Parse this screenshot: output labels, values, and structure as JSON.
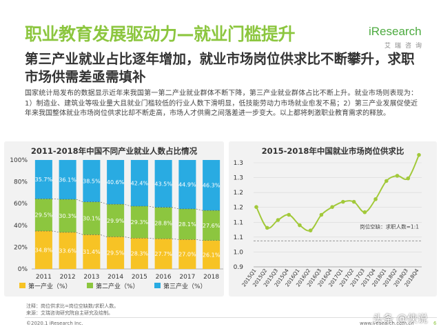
{
  "header": {
    "title": "职业教育发展驱动力—就业门槛提升",
    "subtitle": "第三产业就业占比逐年增加，就业市场岗位供求比不断攀升，求职市场供需差亟需填补",
    "body": "国家统计局发布的数据显示近年来我国第一第二产业就业群体不断下降，第三产业就业群体占比不断上升。就业市场则表现为：1）制造业、建筑业等吸业量大且就业门槛较低的行业人数下滑明显，低技能劳动力市场就业愈发不易；2）第三产业发展促使近年来我国整体就业市场岗位供求比却不断走高，市场人才供需之间落差进一步变大。以上都将刺激职业教育需求的释放。"
  },
  "logo": {
    "main": "iResearch",
    "sub": "艾瑞咨询"
  },
  "colors": {
    "primary": "#f7c325",
    "secondary": "#8cc63f",
    "tertiary": "#29abe2",
    "line": "#a2c93a",
    "title": "#8cc63f"
  },
  "chart_data": [
    {
      "type": "bar",
      "stacked": true,
      "title": "2011-2018年中国不同产业就业人数占比情况",
      "categories": [
        "2011",
        "2012",
        "2013",
        "2014",
        "2015",
        "2016",
        "2017",
        "2018"
      ],
      "series": [
        {
          "name": "第一产业（%）",
          "values": [
            34.8,
            33.6,
            31.4,
            29.5,
            28.3,
            27.7,
            27.0,
            26.1
          ],
          "labels": [
            "34.8%",
            "33.6%",
            "31.4%",
            "29.5%",
            "28.3%",
            "27.7%",
            "27.0%",
            "26.1%"
          ]
        },
        {
          "name": "第二产业（%）",
          "values": [
            29.5,
            30.3,
            30.1,
            29.9,
            29.3,
            28.8,
            28.1,
            27.6
          ],
          "labels": [
            "29.5%",
            "30.3%",
            "30.1%",
            "29.9%",
            "29.3%",
            "28.8%",
            "28.1%",
            "27.6%"
          ]
        },
        {
          "name": "第三产业（%）",
          "values": [
            35.7,
            36.1,
            38.5,
            40.6,
            42.4,
            43.5,
            44.9,
            46.3
          ],
          "labels": [
            "35.7%",
            "36.1%",
            "38.5%",
            "40.6%",
            "42.4%",
            "43.5%",
            "44.9%",
            "46.3%"
          ]
        }
      ],
      "yticks": [
        "0%",
        "20%",
        "40%",
        "60%",
        "80%",
        "100%"
      ],
      "ylim": [
        0,
        100
      ],
      "legend": "bottom"
    },
    {
      "type": "line",
      "title": "2015-2018年中国就业市场岗位供求比",
      "x": [
        "2015Q1",
        "2015Q2",
        "2015Q3",
        "2015Q4",
        "2016Q1",
        "2016Q2",
        "2016Q3",
        "2016Q4",
        "2017Q1",
        "2017Q2",
        "2017Q3",
        "2017Q4",
        "2018Q1",
        "2018Q2",
        "2018Q3",
        "2018Q4"
      ],
      "values": [
        1.13,
        1.05,
        1.08,
        1.1,
        1.06,
        1.04,
        1.1,
        1.13,
        1.15,
        1.15,
        1.11,
        1.16,
        1.23,
        1.25,
        1.24,
        1.33
      ],
      "yticks": [
        "0.9",
        "1.0",
        "1.1",
        "1.1",
        "1.2",
        "1.2",
        "1.3",
        "1.3"
      ],
      "ylim": [
        0.9,
        1.3
      ],
      "annotation": "岗位空缺：求职人数=1:1",
      "reference_line": 1.0
    }
  ],
  "notes": {
    "note": "注释：岗位供求比=岗位空缺数/求职人数。",
    "source": "来源：艾瑞咨询研究院自主研究及绘制。"
  },
  "footer": {
    "copyright": "©2020.1 iResearch Inc.",
    "website": "www.iresearch.com.cn",
    "page": "6",
    "watermark": "头条 @侠说"
  }
}
